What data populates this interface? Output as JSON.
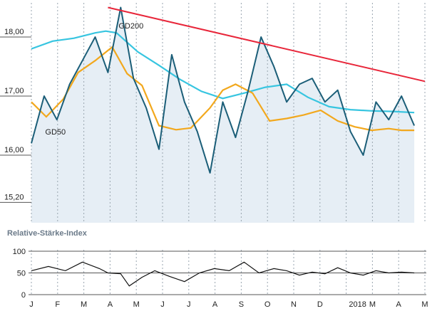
{
  "chart_data": [
    {
      "type": "line",
      "ylim": [
        15.0,
        18.5
      ],
      "y_ticks": [
        "18,00",
        "17,00",
        "16,00",
        "15,20"
      ],
      "y_tick_values": [
        18.0,
        17.0,
        16.0,
        15.2
      ],
      "x_ticks": [
        "J",
        "F",
        "M",
        "A",
        "M",
        "J",
        "J",
        "A",
        "S",
        "O",
        "N",
        "D",
        "2018",
        "M",
        "A",
        "M"
      ],
      "grid": "vertical dashed",
      "colors": {
        "price": "#1b5e78",
        "area": "#e6eef5",
        "gd200": "#37c5e0",
        "gd50": "#f2a81d",
        "trend": "#e8263a"
      },
      "series": [
        {
          "name": "",
          "role": "price",
          "x": [
            0,
            0.6,
            1.2,
            1.8,
            2.4,
            3.0,
            3.6,
            4.2,
            4.8,
            5.4,
            6.0,
            6.6,
            7.2,
            7.8,
            8.4,
            9.0,
            9.6,
            10.2,
            10.8,
            11.4,
            12.0,
            12.6,
            13.2,
            13.8,
            14.4,
            15.0,
            15.6,
            16.2,
            16.8,
            17.4,
            18.0
          ],
          "values": [
            16.2,
            17.0,
            16.6,
            17.2,
            17.6,
            18.0,
            17.4,
            18.5,
            17.3,
            16.8,
            16.1,
            17.7,
            16.9,
            16.4,
            15.7,
            16.9,
            16.3,
            17.1,
            18.0,
            17.5,
            16.9,
            17.2,
            17.3,
            16.9,
            17.1,
            16.4,
            16.0,
            16.9,
            16.6,
            17.0,
            16.5
          ]
        },
        {
          "name": "GD200",
          "role": "gd200",
          "x": [
            0,
            1,
            2,
            3,
            3.5,
            4,
            5,
            6,
            7,
            8,
            9,
            10,
            11,
            12,
            13,
            14,
            15,
            16,
            17,
            18
          ],
          "values": [
            17.8,
            17.93,
            17.98,
            18.07,
            18.1,
            18.07,
            17.75,
            17.52,
            17.28,
            17.08,
            16.96,
            17.05,
            17.15,
            17.2,
            16.98,
            16.82,
            16.77,
            16.75,
            16.74,
            16.72
          ]
        },
        {
          "name": "GD50",
          "role": "gd50",
          "x": [
            0,
            0.7,
            1.5,
            2.2,
            3,
            3.8,
            4.5,
            5.2,
            6,
            6.8,
            7.5,
            8.4,
            9,
            9.6,
            10.4,
            11.2,
            12,
            12.8,
            13.6,
            14.4,
            15.2,
            16,
            16.8,
            17.4,
            18
          ],
          "values": [
            16.9,
            16.65,
            16.95,
            17.4,
            17.6,
            17.83,
            17.38,
            17.18,
            16.5,
            16.43,
            16.46,
            16.8,
            17.1,
            17.2,
            17.05,
            16.58,
            16.62,
            16.68,
            16.76,
            16.58,
            16.48,
            16.42,
            16.45,
            16.42,
            16.42
          ]
        },
        {
          "name": "",
          "role": "trendline",
          "x": [
            3.6,
            18.5
          ],
          "values": [
            18.5,
            17.25
          ]
        }
      ]
    },
    {
      "type": "line",
      "title": "Relative-Stärke-Index",
      "ylim": [
        0,
        100
      ],
      "y_ticks": [
        "100",
        "50",
        "0"
      ],
      "y_tick_values": [
        100,
        50,
        0
      ],
      "series": [
        {
          "name": "",
          "x": [
            0,
            0.8,
            1.6,
            2.4,
            3.2,
            3.6,
            4.2,
            4.6,
            5.2,
            5.8,
            6.5,
            7.2,
            7.9,
            8.6,
            9.3,
            10,
            10.7,
            11.4,
            12,
            12.6,
            13.2,
            13.8,
            14.4,
            15,
            15.6,
            16.2,
            16.8,
            17.4,
            18
          ],
          "values": [
            55,
            65,
            55,
            75,
            60,
            50,
            48,
            20,
            40,
            55,
            42,
            30,
            50,
            60,
            55,
            75,
            50,
            60,
            55,
            45,
            52,
            48,
            62,
            50,
            45,
            55,
            50,
            52,
            50
          ]
        }
      ]
    }
  ]
}
